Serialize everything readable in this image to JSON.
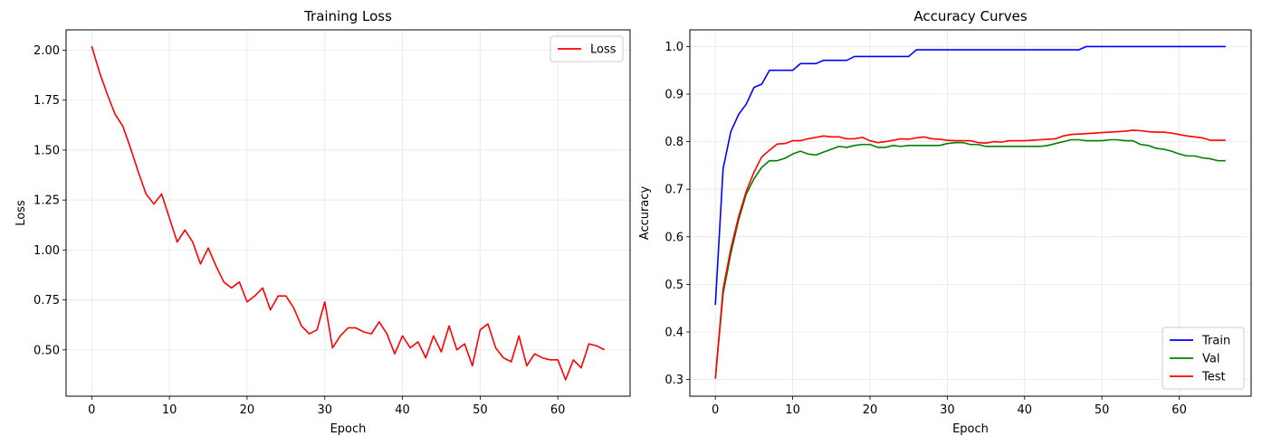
{
  "chart_data": [
    {
      "type": "line",
      "title": "Training Loss",
      "xlabel": "Epoch",
      "ylabel": "Loss",
      "xlim": [
        -3.3,
        69.3
      ],
      "ylim": [
        0.268,
        2.102
      ],
      "xticks": [
        0,
        10,
        20,
        30,
        40,
        50,
        60
      ],
      "yticks": [
        0.5,
        0.75,
        1.0,
        1.25,
        1.5,
        1.75,
        2.0
      ],
      "ytick_labels": [
        "0.50",
        "0.75",
        "1.00",
        "1.25",
        "1.50",
        "1.75",
        "2.00"
      ],
      "grid": true,
      "legend_position": "top-right",
      "series": [
        {
          "name": "Loss",
          "color": "#ff0000",
          "values": [
            2.02,
            1.89,
            1.78,
            1.68,
            1.62,
            1.51,
            1.39,
            1.28,
            1.23,
            1.28,
            1.16,
            1.04,
            1.1,
            1.04,
            0.93,
            1.01,
            0.92,
            0.84,
            0.81,
            0.84,
            0.74,
            0.77,
            0.81,
            0.7,
            0.77,
            0.77,
            0.71,
            0.62,
            0.58,
            0.6,
            0.74,
            0.51,
            0.57,
            0.61,
            0.61,
            0.59,
            0.58,
            0.64,
            0.58,
            0.48,
            0.57,
            0.51,
            0.54,
            0.46,
            0.57,
            0.49,
            0.62,
            0.5,
            0.53,
            0.42,
            0.6,
            0.63,
            0.51,
            0.46,
            0.44,
            0.57,
            0.42,
            0.48,
            0.46,
            0.45,
            0.45,
            0.35,
            0.45,
            0.41,
            0.53,
            0.52,
            0.5
          ]
        }
      ]
    },
    {
      "type": "line",
      "title": "Accuracy Curves",
      "xlabel": "Epoch",
      "ylabel": "Accuracy",
      "xlim": [
        -3.3,
        69.3
      ],
      "ylim": [
        0.265,
        1.035
      ],
      "xticks": [
        0,
        10,
        20,
        30,
        40,
        50,
        60
      ],
      "yticks": [
        0.3,
        0.4,
        0.5,
        0.6,
        0.7,
        0.8,
        0.9,
        1.0
      ],
      "ytick_labels": [
        "0.3",
        "0.4",
        "0.5",
        "0.6",
        "0.7",
        "0.8",
        "0.9",
        "1.0"
      ],
      "grid": true,
      "legend_position": "bottom-right",
      "series": [
        {
          "name": "Train",
          "color": "#0000ff",
          "values": [
            0.457,
            0.743,
            0.821,
            0.857,
            0.879,
            0.914,
            0.921,
            0.95,
            0.95,
            0.95,
            0.95,
            0.964,
            0.964,
            0.964,
            0.971,
            0.971,
            0.971,
            0.971,
            0.979,
            0.979,
            0.979,
            0.979,
            0.979,
            0.979,
            0.979,
            0.979,
            0.993,
            0.993,
            0.993,
            0.993,
            0.993,
            0.993,
            0.993,
            0.993,
            0.993,
            0.993,
            0.993,
            0.993,
            0.993,
            0.993,
            0.993,
            0.993,
            0.993,
            0.993,
            0.993,
            0.993,
            0.993,
            0.993,
            1.0,
            1.0,
            1.0,
            1.0,
            1.0,
            1.0,
            1.0,
            1.0,
            1.0,
            1.0,
            1.0,
            1.0,
            1.0,
            1.0,
            1.0,
            1.0,
            1.0,
            1.0,
            1.0
          ]
        },
        {
          "name": "Val",
          "color": "#008000",
          "values": [
            0.302,
            0.48,
            0.565,
            0.635,
            0.69,
            0.722,
            0.746,
            0.76,
            0.76,
            0.765,
            0.774,
            0.78,
            0.774,
            0.772,
            0.778,
            0.784,
            0.79,
            0.788,
            0.792,
            0.794,
            0.794,
            0.788,
            0.788,
            0.792,
            0.79,
            0.792,
            0.792,
            0.792,
            0.792,
            0.792,
            0.796,
            0.798,
            0.798,
            0.794,
            0.794,
            0.79,
            0.79,
            0.79,
            0.79,
            0.79,
            0.79,
            0.79,
            0.79,
            0.792,
            0.796,
            0.8,
            0.804,
            0.804,
            0.802,
            0.802,
            0.802,
            0.804,
            0.804,
            0.802,
            0.802,
            0.794,
            0.792,
            0.786,
            0.784,
            0.78,
            0.774,
            0.77,
            0.77,
            0.766,
            0.764,
            0.76,
            0.76
          ]
        },
        {
          "name": "Test",
          "color": "#ff0000",
          "values": [
            0.302,
            0.49,
            0.575,
            0.642,
            0.696,
            0.736,
            0.768,
            0.782,
            0.795,
            0.796,
            0.802,
            0.802,
            0.806,
            0.809,
            0.812,
            0.81,
            0.81,
            0.806,
            0.806,
            0.809,
            0.802,
            0.798,
            0.8,
            0.803,
            0.806,
            0.805,
            0.808,
            0.81,
            0.806,
            0.805,
            0.803,
            0.802,
            0.802,
            0.802,
            0.798,
            0.797,
            0.8,
            0.799,
            0.802,
            0.802,
            0.802,
            0.803,
            0.804,
            0.805,
            0.806,
            0.812,
            0.815,
            0.816,
            0.817,
            0.818,
            0.819,
            0.82,
            0.821,
            0.822,
            0.824,
            0.823,
            0.821,
            0.82,
            0.82,
            0.818,
            0.815,
            0.812,
            0.81,
            0.808,
            0.803,
            0.803,
            0.803
          ]
        }
      ]
    }
  ]
}
